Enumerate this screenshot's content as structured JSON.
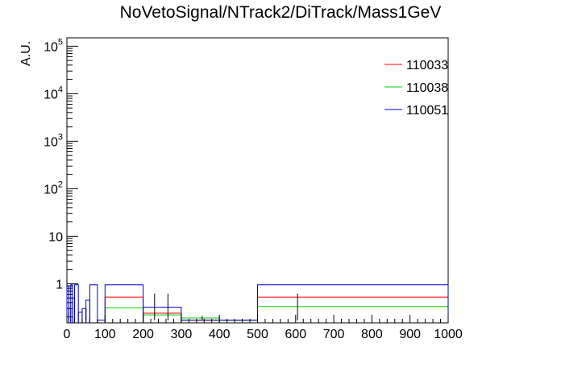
{
  "window": {
    "title": "NoVetoSignal/NTrack2/DiTrack/Mass1GeV"
  },
  "chart_data": {
    "type": "histogram-step",
    "title": "NoVetoSignal/NTrack2/DiTrack/Mass1GeV",
    "xlabel": "",
    "ylabel": "A.U.",
    "xlim": [
      0,
      1000
    ],
    "ylim": [
      0.15,
      150000
    ],
    "yscale": "log",
    "x_tick_labels": [
      "0",
      "100",
      "200",
      "300",
      "400",
      "500",
      "600",
      "700",
      "800",
      "900",
      "1000"
    ],
    "y_tick_labels": [
      {
        "value": 1,
        "base": "1",
        "exp": ""
      },
      {
        "value": 10,
        "base": "10",
        "exp": ""
      },
      {
        "value": 100,
        "base": "10",
        "exp": "2"
      },
      {
        "value": 1000,
        "base": "10",
        "exp": "3"
      },
      {
        "value": 10000,
        "base": "10",
        "exp": "4"
      },
      {
        "value": 100000,
        "base": "10",
        "exp": "5"
      }
    ],
    "legend_position": "top-right",
    "series": [
      {
        "name": "110033",
        "color": "#ff0000",
        "bins": [
          {
            "x0": 100,
            "x1": 200,
            "y": 0.52
          },
          {
            "x0": 200,
            "x1": 300,
            "y": 0.24
          },
          {
            "x0": 300,
            "x1": 400,
            "y": 0.17
          },
          {
            "x0": 400,
            "x1": 500,
            "y": 0.17
          },
          {
            "x0": 500,
            "x1": 1000,
            "y": 0.52
          }
        ]
      },
      {
        "name": "110038",
        "color": "#00cc00",
        "bins": [
          {
            "x0": 100,
            "x1": 200,
            "y": 0.31
          },
          {
            "x0": 200,
            "x1": 300,
            "y": 0.22
          },
          {
            "x0": 300,
            "x1": 400,
            "y": 0.19
          },
          {
            "x0": 400,
            "x1": 500,
            "y": 0.17
          },
          {
            "x0": 500,
            "x1": 1000,
            "y": 0.33
          }
        ]
      },
      {
        "name": "110051",
        "color": "#0000cc",
        "bins": [
          {
            "x0": 0,
            "x1": 5,
            "y": 0.9
          },
          {
            "x0": 5,
            "x1": 10,
            "y": 0.3
          },
          {
            "x0": 10,
            "x1": 15,
            "y": 0.95
          },
          {
            "x0": 15,
            "x1": 20,
            "y": 0.5
          },
          {
            "x0": 20,
            "x1": 30,
            "y": 0.95
          },
          {
            "x0": 30,
            "x1": 40,
            "y": 0.25
          },
          {
            "x0": 40,
            "x1": 50,
            "y": 0.3
          },
          {
            "x0": 50,
            "x1": 60,
            "y": 0.45
          },
          {
            "x0": 60,
            "x1": 80,
            "y": 0.95
          },
          {
            "x0": 80,
            "x1": 100,
            "y": 0.17
          },
          {
            "x0": 100,
            "x1": 200,
            "y": 0.95
          },
          {
            "x0": 200,
            "x1": 300,
            "y": 0.32
          },
          {
            "x0": 300,
            "x1": 500,
            "y": 0.17
          },
          {
            "x0": 500,
            "x1": 1000,
            "y": 0.95
          }
        ]
      }
    ],
    "error_bars": [
      {
        "x": 50,
        "y_low": 0.17,
        "y_high": 0.3
      },
      {
        "x": 230,
        "y_low": 0.17,
        "y_high": 0.62
      },
      {
        "x": 265,
        "y_low": 0.17,
        "y_high": 0.62
      },
      {
        "x": 355,
        "y_low": 0.17,
        "y_high": 0.21
      },
      {
        "x": 605,
        "y_low": 0.17,
        "y_high": 0.62
      }
    ]
  }
}
